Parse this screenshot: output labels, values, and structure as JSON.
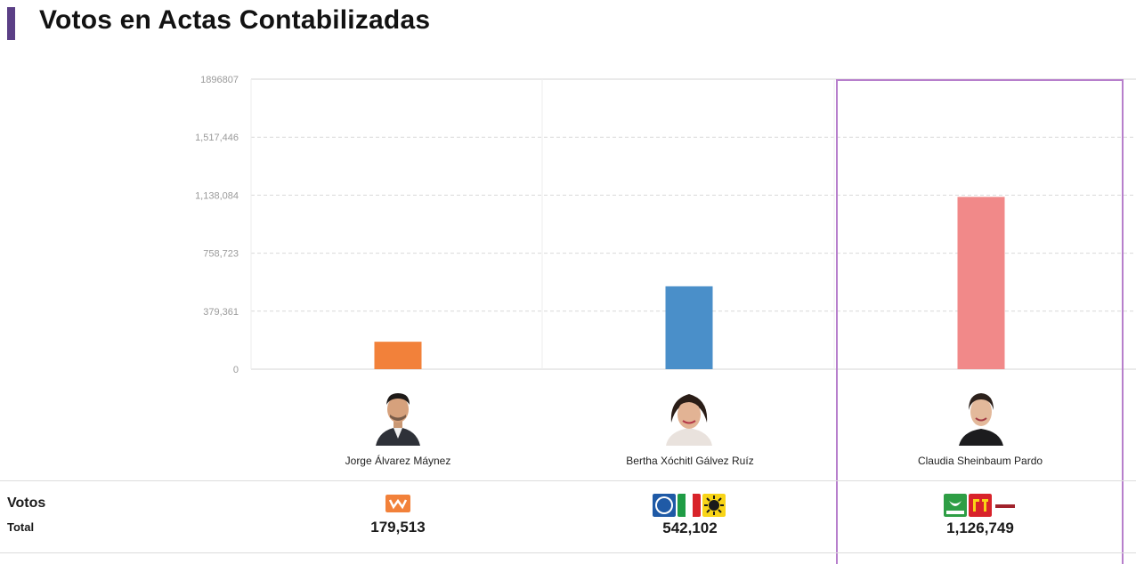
{
  "header": {
    "title": "Votos en Actas Contabilizadas",
    "accent_color": "#5b3f86"
  },
  "row_labels": {
    "votos": "Votos",
    "total": "Total"
  },
  "candidates": [
    {
      "name": "Jorge Álvarez Máynez",
      "total": "179,513",
      "bar_color": "#f2813a",
      "logos": [
        "mc-logo"
      ],
      "highlighted": false
    },
    {
      "name": "Bertha Xóchitl Gálvez Ruíz",
      "total": "542,102",
      "bar_color": "#4a8fc9",
      "logos": [
        "pan-logo",
        "pri-logo",
        "prd-logo"
      ],
      "highlighted": false
    },
    {
      "name": "Claudia Sheinbaum Pardo",
      "total": "1,126,749",
      "bar_color": "#f18989",
      "logos": [
        "verde-logo",
        "pt-logo",
        "morena-logo"
      ],
      "highlighted": true
    }
  ],
  "chart_data": {
    "type": "bar",
    "categories": [
      "Jorge Álvarez Máynez",
      "Bertha Xóchitl Gálvez Ruíz",
      "Claudia Sheinbaum Pardo"
    ],
    "values": [
      179513,
      542102,
      1126749
    ],
    "y_ticks": [
      "0",
      "379,361",
      "758,723",
      "1,138,084",
      "1,517,446",
      "1896807"
    ],
    "ylim": [
      0,
      1896807
    ],
    "grid": true,
    "highlight_color": "#b77fcc"
  }
}
